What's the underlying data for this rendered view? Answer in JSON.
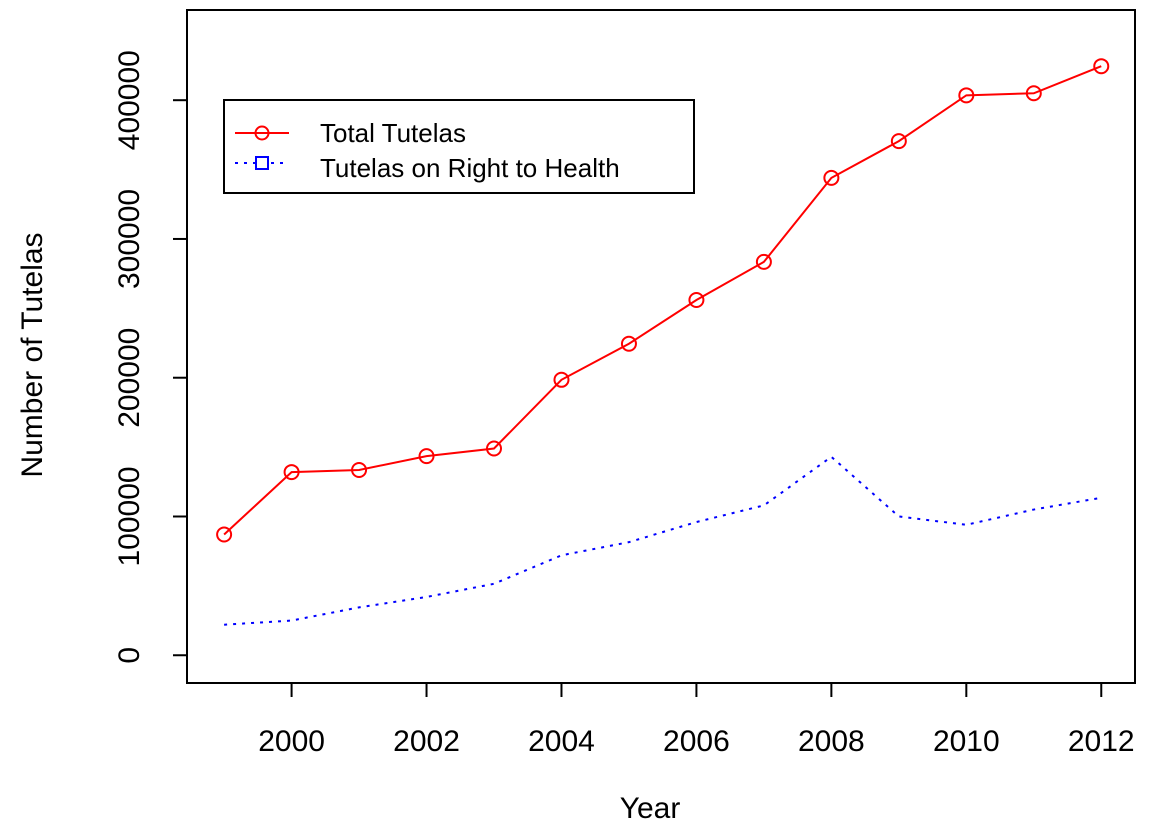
{
  "chart_data": {
    "type": "line",
    "title": "",
    "xlabel": "Year",
    "ylabel": "Number of Tutelas",
    "xlim": [
      1998.45,
      2012.5
    ],
    "ylim": [
      -20000,
      465000
    ],
    "x_ticks": [
      2000,
      2002,
      2004,
      2006,
      2008,
      2010,
      2012
    ],
    "y_ticks": [
      0,
      100000,
      200000,
      300000,
      400000
    ],
    "legend_position": "top-left",
    "series": [
      {
        "name": "Total Tutelas",
        "color": "#ff0000",
        "line_style": "solid",
        "marker": "circle",
        "x": [
          1999,
          2000,
          2001,
          2002,
          2003,
          2004,
          2005,
          2006,
          2007,
          2008,
          2009,
          2010,
          2011,
          2012
        ],
        "values": [
          87000,
          132000,
          133500,
          143500,
          149000,
          198500,
          224500,
          256000,
          283500,
          344000,
          370500,
          403500,
          405000,
          424500
        ]
      },
      {
        "name": "Tutelas on Right to Health",
        "color": "#0000ff",
        "line_style": "dotted",
        "marker": "square",
        "x": [
          1999,
          2000,
          2001,
          2002,
          2003,
          2004,
          2005,
          2006,
          2007,
          2008,
          2009,
          2010,
          2011,
          2012
        ],
        "values": [
          22000,
          25000,
          34500,
          42000,
          51500,
          72000,
          81500,
          96000,
          108000,
          143000,
          100000,
          94000,
          105000,
          113500
        ]
      }
    ]
  }
}
